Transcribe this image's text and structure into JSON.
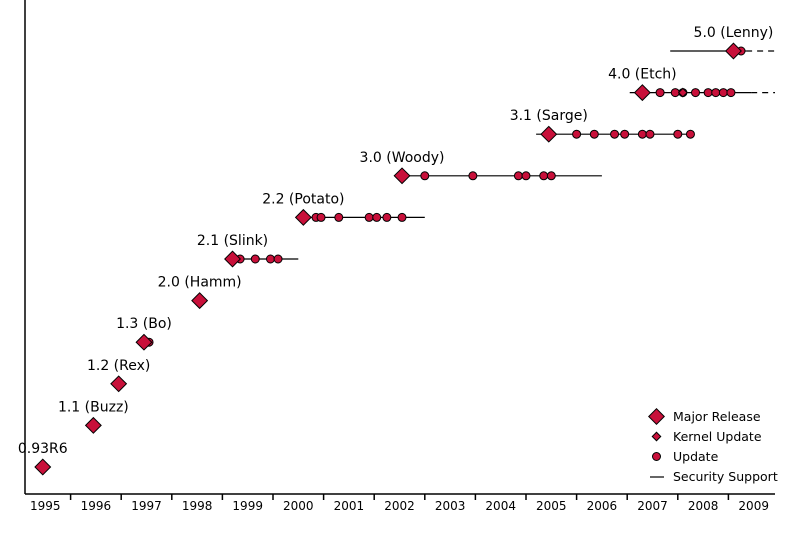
{
  "chart_data": {
    "type": "timeline",
    "title": "",
    "xlabel": "",
    "ylabel": "",
    "xlim": [
      1995,
      2010
    ],
    "x_ticks": [
      "1995",
      "1996",
      "1997",
      "1998",
      "1999",
      "2000",
      "2001",
      "2002",
      "2003",
      "2004",
      "2005",
      "2006",
      "2007",
      "2008",
      "2009"
    ],
    "colors": {
      "marker_fill": "#c8103a",
      "marker_stroke": "#000000",
      "line": "#000000"
    },
    "legend": {
      "position": "bottom-right",
      "major_release": "Major Release",
      "kernel_update": "Kernel Update",
      "update": "Update",
      "security_support": "Security Support"
    },
    "releases": [
      {
        "name": "0.93R6",
        "release": 1995.45,
        "support": null,
        "kernel_updates": [],
        "updates": []
      },
      {
        "name": "1.1 (Buzz)",
        "release": 1996.45,
        "support": null,
        "kernel_updates": [],
        "updates": []
      },
      {
        "name": "1.2 (Rex)",
        "release": 1996.95,
        "support": null,
        "kernel_updates": [],
        "updates": []
      },
      {
        "name": "1.3 (Bo)",
        "release": 1997.45,
        "support": null,
        "kernel_updates": [],
        "updates": [
          1997.55
        ]
      },
      {
        "name": "2.0 (Hamm)",
        "release": 1998.55,
        "support": null,
        "kernel_updates": [],
        "updates": []
      },
      {
        "name": "2.1 (Slink)",
        "release": 1999.2,
        "support": [
          1999.2,
          2000.5
        ],
        "kernel_updates": [],
        "updates": [
          1999.35,
          1999.65,
          1999.95,
          2000.1
        ]
      },
      {
        "name": "2.2 (Potato)",
        "release": 2000.6,
        "support": [
          2000.6,
          2003.0
        ],
        "kernel_updates": [],
        "updates": [
          2000.85,
          2000.95,
          2001.3,
          2001.9,
          2002.05,
          2002.25,
          2002.55
        ]
      },
      {
        "name": "3.0 (Woody)",
        "release": 2002.55,
        "support": [
          2002.55,
          2006.5
        ],
        "kernel_updates": [],
        "updates": [
          2003.0,
          2003.95,
          2004.85,
          2005.0,
          2005.35,
          2005.5
        ]
      },
      {
        "name": "3.1 (Sarge)",
        "release": 2005.45,
        "support": [
          2005.2,
          2008.3
        ],
        "kernel_updates": [],
        "updates": [
          2006.0,
          2006.35,
          2006.75,
          2006.95,
          2007.3,
          2007.45,
          2008.0,
          2008.25
        ]
      },
      {
        "name": "4.0 (Etch)",
        "release": 2007.3,
        "support": [
          2007.05,
          2009.45
        ],
        "support_continues": true,
        "kernel_updates": [
          2008.1
        ],
        "updates": [
          2007.65,
          2007.95,
          2008.1,
          2008.35,
          2008.6,
          2008.75,
          2008.9,
          2009.05
        ]
      },
      {
        "name": "5.0 (Lenny)",
        "release": 2009.1,
        "support": [
          2007.85,
          2009.35
        ],
        "support_continues": true,
        "kernel_updates": [],
        "updates": [
          2009.25
        ]
      }
    ]
  }
}
